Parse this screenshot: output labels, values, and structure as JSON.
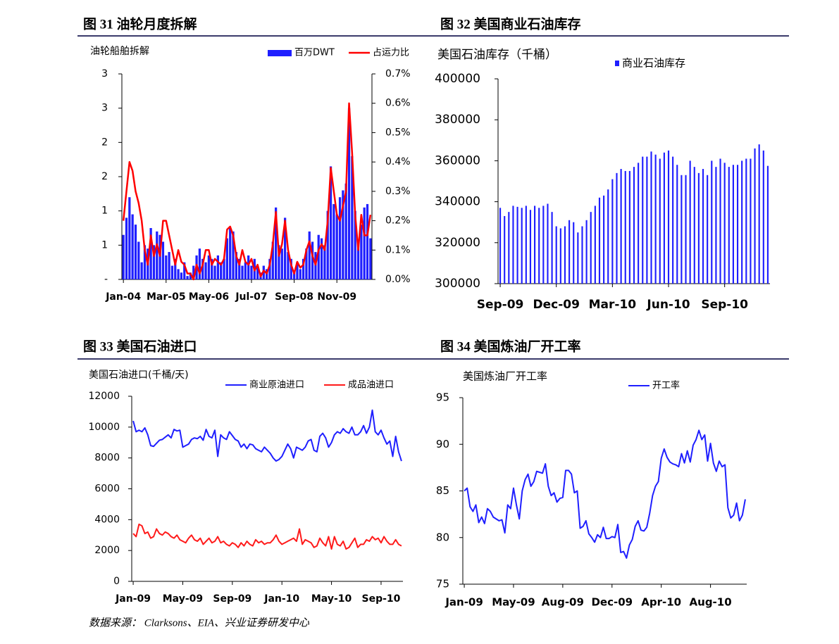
{
  "chart_data": [
    {
      "type": "combo",
      "title": "图 31   油轮月度拆解",
      "ylabel": "油轮船舶拆解",
      "categories": [
        "Jan-04",
        null,
        null,
        null,
        null,
        null,
        null,
        null,
        null,
        null,
        null,
        null,
        null,
        null,
        "Mar-05",
        null,
        null,
        null,
        null,
        null,
        null,
        null,
        null,
        null,
        null,
        null,
        null,
        null,
        "May-06",
        null,
        null,
        null,
        null,
        null,
        null,
        null,
        null,
        null,
        null,
        null,
        null,
        null,
        "Jul-07",
        null,
        null,
        null,
        null,
        null,
        null,
        null,
        null,
        null,
        null,
        null,
        null,
        null,
        "Sep-08",
        null,
        null,
        null,
        null,
        null,
        null,
        null,
        null,
        null,
        null,
        null,
        null,
        null,
        "Nov-09",
        null,
        null,
        null,
        null,
        null,
        null,
        null,
        null,
        null,
        null,
        null
      ],
      "ylim": [
        0,
        3
      ],
      "yticks": [
        {
          "value": 0,
          "label": "-"
        },
        {
          "value": 0.5,
          "label": "1"
        },
        1,
        {
          "value": 1.5,
          "label": "2"
        },
        2,
        {
          "value": 2.5,
          "label": "3"
        },
        3
      ],
      "y2lim": [
        0,
        0.7
      ],
      "y2ticks": [
        {
          "value": 0,
          "label": "0.0%"
        },
        {
          "value": 0.1,
          "label": "0.1%"
        },
        {
          "value": 0.2,
          "label": "0.2%"
        },
        {
          "value": 0.3,
          "label": "0.3%"
        },
        {
          "value": 0.4,
          "label": "0.4%"
        },
        {
          "value": 0.5,
          "label": "0.5%"
        },
        {
          "value": 0.6,
          "label": "0.6%"
        },
        {
          "value": 0.7,
          "label": "0.7%"
        }
      ],
      "series": [
        {
          "name": "百万DWT",
          "type": "bar",
          "color": "#1f1fff",
          "values": [
            0.65,
            0.9,
            1.2,
            0.95,
            0.8,
            0.55,
            0.25,
            0.5,
            0.45,
            0.75,
            0.5,
            0.7,
            0.65,
            0.55,
            0.35,
            0.4,
            0.2,
            0.3,
            0.15,
            0.1,
            0.25,
            0.05,
            0.1,
            0.2,
            0.35,
            0.45,
            0.3,
            0.25,
            0.35,
            0.3,
            0.2,
            0.35,
            0.25,
            0.3,
            0.6,
            0.75,
            0.7,
            0.4,
            0.3,
            0.2,
            0.25,
            0.35,
            0.2,
            0.3,
            0.2,
            0.1,
            0.2,
            0.15,
            0.3,
            0.55,
            1.05,
            0.5,
            0.45,
            0.9,
            0.4,
            0.3,
            0.1,
            0.25,
            0.15,
            0.3,
            0.45,
            0.7,
            0.55,
            0.4,
            0.65,
            0.6,
            0.5,
            1.0,
            1.65,
            1.1,
            0.95,
            1.2,
            1.3,
            1.4,
            2.5,
            1.8,
            1.0,
            0.5,
            0.8,
            1.05,
            1.1,
            0.6
          ]
        },
        {
          "name": "占运力比",
          "type": "line",
          "axis": "y2",
          "color": "#ff0000",
          "values": [
            0.2,
            0.3,
            0.4,
            0.37,
            0.3,
            0.26,
            0.2,
            0.1,
            0.05,
            0.15,
            0.08,
            0.12,
            0.08,
            0.2,
            0.2,
            0.15,
            0.1,
            0.05,
            0.1,
            0.06,
            0.05,
            0.02,
            0.02,
            0.0,
            0.05,
            0.02,
            0.05,
            0.1,
            0.1,
            0.05,
            0.07,
            0.06,
            0.05,
            0.07,
            0.17,
            0.18,
            0.15,
            0.08,
            0.05,
            0.1,
            0.06,
            0.05,
            0.07,
            0.03,
            0.05,
            0.01,
            0.03,
            0.02,
            0.05,
            0.12,
            0.23,
            0.08,
            0.12,
            0.2,
            0.1,
            0.05,
            0.02,
            0.06,
            0.04,
            0.05,
            0.1,
            0.13,
            0.08,
            0.05,
            0.1,
            0.12,
            0.1,
            0.2,
            0.38,
            0.3,
            0.22,
            0.2,
            0.25,
            0.3,
            0.6,
            0.43,
            0.22,
            0.1,
            0.22,
            0.15,
            0.15,
            0.22
          ]
        }
      ]
    },
    {
      "type": "bar",
      "title": "图 32   美国商业石油库存",
      "ylabel": "美国石油库存（千桶）",
      "categories": [
        "Sep-09",
        null,
        null,
        null,
        null,
        null,
        null,
        null,
        null,
        null,
        null,
        null,
        null,
        "Dec-09",
        null,
        null,
        null,
        null,
        null,
        null,
        null,
        null,
        null,
        null,
        null,
        null,
        "Mar-10",
        null,
        null,
        null,
        null,
        null,
        null,
        null,
        null,
        null,
        null,
        null,
        null,
        "Jun-10",
        null,
        null,
        null,
        null,
        null,
        null,
        null,
        null,
        null,
        null,
        null,
        null,
        "Sep-10",
        null,
        null,
        null,
        null,
        null,
        null,
        null,
        null,
        null,
        null
      ],
      "ylim": [
        300000,
        400000
      ],
      "yticks": [
        300000,
        320000,
        340000,
        360000,
        380000,
        400000
      ],
      "series": [
        {
          "name": "商业石油库存",
          "color": "#1f1fff",
          "values": [
            337000,
            333000,
            335000,
            338000,
            337500,
            337000,
            338000,
            336000,
            338000,
            337000,
            338000,
            339000,
            335000,
            328000,
            327000,
            328000,
            331000,
            330000,
            325000,
            328000,
            331000,
            335000,
            338000,
            342000,
            343000,
            346000,
            351000,
            354000,
            356000,
            355000,
            355000,
            357000,
            359000,
            362000,
            362000,
            364500,
            363000,
            361000,
            364000,
            365000,
            362000,
            358000,
            353000,
            353000,
            360000,
            357000,
            354000,
            356000,
            353000,
            360000,
            357000,
            361000,
            359000,
            357000,
            358000,
            358000,
            360000,
            361000,
            361000,
            366000,
            368000,
            365000,
            357500
          ]
        }
      ]
    },
    {
      "type": "line",
      "title": "图 33   美国石油进口",
      "ylabel": "美国石油进口(千桶/天)",
      "categories": [
        "Jan-09",
        null,
        null,
        null,
        null,
        null,
        null,
        null,
        null,
        null,
        null,
        null,
        null,
        null,
        null,
        null,
        null,
        "May-09",
        null,
        null,
        null,
        null,
        null,
        null,
        null,
        null,
        null,
        null,
        null,
        null,
        null,
        null,
        null,
        null,
        "Sep-09",
        null,
        null,
        null,
        null,
        null,
        null,
        null,
        null,
        null,
        null,
        null,
        null,
        null,
        null,
        null,
        null,
        "Jan-10",
        null,
        null,
        null,
        null,
        null,
        null,
        null,
        null,
        null,
        null,
        null,
        null,
        null,
        null,
        null,
        null,
        "May-10",
        null,
        null,
        null,
        null,
        null,
        null,
        null,
        null,
        null,
        null,
        null,
        null,
        null,
        null,
        null,
        null,
        "Sep-10",
        null,
        null,
        null,
        null,
        null,
        null,
        null
      ],
      "ylim": [
        0,
        12000
      ],
      "yticks": [
        0,
        2000,
        4000,
        6000,
        8000,
        10000,
        12000
      ],
      "series": [
        {
          "name": "商业原油进口",
          "color": "#1f1fff",
          "values": [
            10400,
            9700,
            9800,
            9700,
            9950,
            9500,
            8800,
            8750,
            8950,
            9150,
            9200,
            9350,
            9500,
            9300,
            9850,
            9750,
            9800,
            8700,
            8800,
            8900,
            9200,
            9300,
            9250,
            9400,
            9150,
            9850,
            9400,
            9300,
            9800,
            8100,
            9500,
            9300,
            9200,
            9700,
            9450,
            9200,
            9100,
            8700,
            8900,
            8600,
            8900,
            8850,
            8600,
            8500,
            8400,
            8700,
            8500,
            8300,
            8000,
            7800,
            7900,
            8100,
            8500,
            8900,
            8600,
            8000,
            8700,
            8600,
            8500,
            8700,
            9100,
            9200,
            8500,
            8400,
            9400,
            9600,
            9300,
            8700,
            9000,
            9500,
            9700,
            9600,
            9900,
            9700,
            9600,
            10000,
            9500,
            9500,
            9700,
            10100,
            9600,
            10000,
            11100,
            9700,
            9500,
            9800,
            9300,
            8900,
            9100,
            8100,
            9400,
            8400,
            7800
          ]
        },
        {
          "name": "成品油进口",
          "color": "#ff1a1a",
          "values": [
            3100,
            2900,
            3700,
            3600,
            3100,
            3200,
            2800,
            2900,
            3400,
            3100,
            3000,
            3200,
            3100,
            2900,
            2800,
            3000,
            2700,
            2600,
            2500,
            2800,
            3000,
            2700,
            2600,
            2800,
            2400,
            2600,
            2800,
            2500,
            2600,
            2900,
            2500,
            2600,
            2400,
            2300,
            2500,
            2400,
            2200,
            2500,
            2300,
            2600,
            2400,
            2300,
            2700,
            2500,
            2600,
            2400,
            2500,
            2500,
            2700,
            3000,
            2600,
            2400,
            2500,
            2600,
            2700,
            2800,
            2600,
            3400,
            2400,
            2700,
            2600,
            2500,
            2200,
            2300,
            2800,
            2500,
            2300,
            2900,
            2100,
            2900,
            2400,
            2300,
            2600,
            2100,
            2200,
            2500,
            2800,
            2200,
            2400,
            2400,
            2700,
            2600,
            2900,
            2700,
            2800,
            2500,
            2900,
            2600,
            2400,
            2400,
            2700,
            2400,
            2300
          ]
        }
      ]
    },
    {
      "type": "line",
      "title": "图 34   美国炼油厂开工率",
      "ylabel": "美国炼油厂开工率",
      "categories": [
        "Jan-09",
        null,
        null,
        null,
        null,
        null,
        null,
        null,
        null,
        null,
        null,
        null,
        null,
        null,
        null,
        null,
        null,
        "May-09",
        null,
        null,
        null,
        null,
        null,
        null,
        null,
        null,
        null,
        null,
        null,
        null,
        null,
        null,
        null,
        null,
        "Aug-09",
        null,
        null,
        null,
        null,
        null,
        null,
        null,
        null,
        null,
        null,
        null,
        null,
        null,
        null,
        null,
        null,
        "Dec-09",
        null,
        null,
        null,
        null,
        null,
        null,
        null,
        null,
        null,
        null,
        null,
        null,
        null,
        null,
        null,
        null,
        "Apr-10",
        null,
        null,
        null,
        null,
        null,
        null,
        null,
        null,
        null,
        null,
        null,
        null,
        null,
        null,
        null,
        null,
        "Aug-10",
        null,
        null,
        null,
        null,
        null,
        null,
        null,
        null,
        null,
        null,
        null,
        null
      ],
      "ylim": [
        75,
        95
      ],
      "yticks": [
        75,
        80,
        85,
        90,
        95
      ],
      "series": [
        {
          "name": "开工率",
          "color": "#1f1fff",
          "values": [
            85.0,
            85.3,
            83.3,
            82.8,
            83.5,
            81.6,
            82.2,
            81.5,
            83.1,
            82.8,
            82.2,
            82.0,
            81.8,
            81.9,
            80.5,
            83.5,
            83.1,
            85.3,
            83.5,
            82.0,
            85.0,
            86.2,
            86.8,
            85.5,
            86.0,
            87.1,
            87.0,
            86.9,
            87.9,
            85.5,
            84.5,
            84.8,
            83.8,
            84.2,
            84.3,
            87.2,
            87.2,
            86.8,
            84.8,
            85.0,
            81.0,
            81.2,
            81.8,
            80.4,
            80.0,
            79.5,
            80.3,
            80.0,
            81.1,
            79.9,
            79.9,
            80.1,
            80.0,
            81.4,
            78.4,
            78.5,
            77.8,
            79.2,
            79.8,
            81.2,
            81.8,
            80.8,
            80.7,
            81.1,
            82.6,
            84.5,
            85.5,
            86.0,
            88.5,
            89.5,
            88.6,
            88.1,
            87.9,
            87.8,
            87.6,
            89.0,
            88.0,
            89.3,
            88.1,
            89.9,
            90.5,
            91.5,
            90.5,
            91.0,
            88.2,
            90.1,
            88.0,
            87.1,
            88.2,
            87.6,
            87.8,
            83.2,
            82.1,
            82.4,
            83.7,
            81.8,
            82.4,
            84.1
          ]
        }
      ]
    }
  ],
  "source": "数据来源：  Clarksons、EIA、兴业证券研发中心"
}
